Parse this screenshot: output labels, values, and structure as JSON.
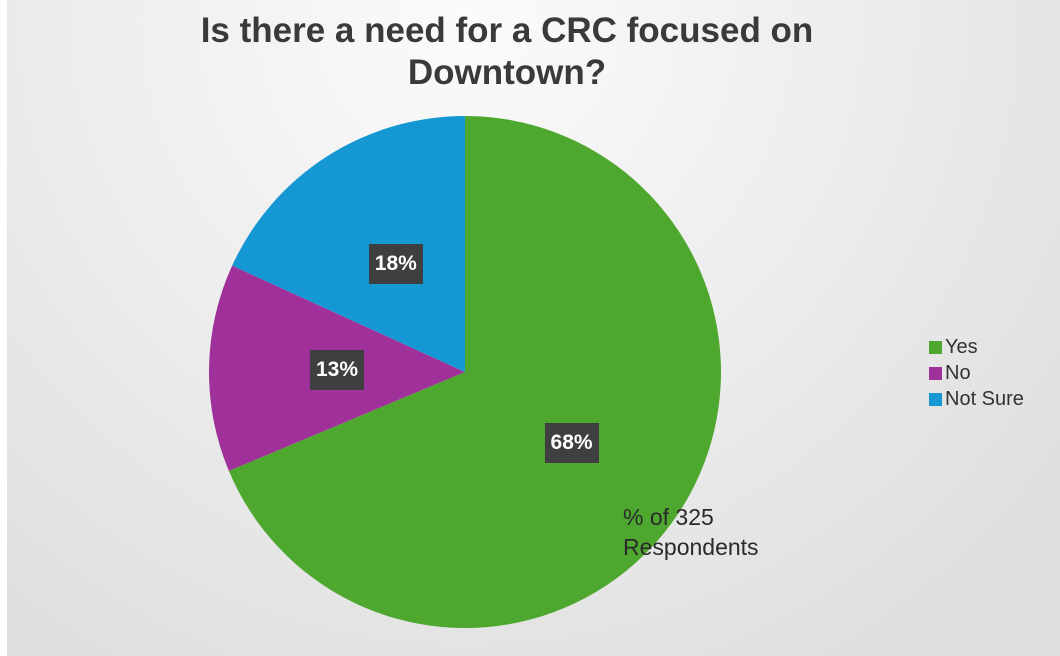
{
  "chart_data": {
    "type": "pie",
    "title": "Is there a need for a CRC focused on Downtown?",
    "categories": [
      "Yes",
      "No",
      "Not Sure"
    ],
    "values": [
      68,
      13,
      18
    ],
    "value_labels": [
      "68%",
      "13%",
      "18%"
    ],
    "colors": [
      "#4ea72e",
      "#a0309a",
      "#1597d4"
    ],
    "legend": {
      "position": "right",
      "entries": [
        "Yes",
        "No",
        "Not Sure"
      ]
    },
    "annotation": "% of 325\nRespondents",
    "background": "#e9e9e9"
  }
}
